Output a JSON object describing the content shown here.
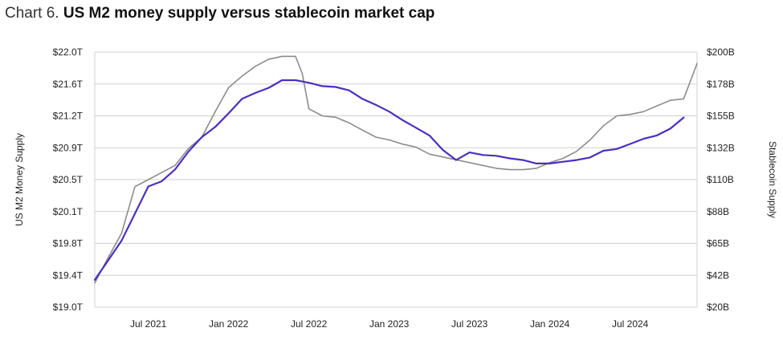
{
  "chart_data": {
    "type": "line",
    "title_prefix": "Chart 6.",
    "title": "US M2 money supply versus stablecoin market cap",
    "ylabel_left": "US M2 Money Supply",
    "ylabel_right": "Stablecoin Supply",
    "x_ticks": [
      "Jul 2021",
      "Jan 2022",
      "Jul 2022",
      "Jan 2023",
      "Jul 2023",
      "Jan 2024",
      "Jul 2024"
    ],
    "x_range_months": [
      0,
      45
    ],
    "y_left_ticks": [
      "$19.0T",
      "$19.4T",
      "$19.8T",
      "$20.1T",
      "$20.5T",
      "$20.9T",
      "$21.2T",
      "$21.6T",
      "$22.0T"
    ],
    "y_left_range": [
      19.0,
      22.0
    ],
    "y_right_ticks": [
      "$20B",
      "$42B",
      "$65B",
      "$88B",
      "$110B",
      "$132B",
      "$155B",
      "$178B",
      "$200B"
    ],
    "y_right_range": [
      20,
      200
    ],
    "grid": true,
    "series": [
      {
        "name": "US M2 Money Supply",
        "axis": "left",
        "color": "#4b2fc0",
        "x": [
          0,
          1,
          2,
          3,
          4,
          5,
          6,
          7,
          8,
          9,
          10,
          11,
          12,
          13,
          14,
          15,
          16,
          17,
          18,
          19,
          20,
          21,
          22,
          23,
          24,
          25,
          26,
          27,
          28,
          29,
          30,
          31,
          32,
          33,
          34,
          35,
          36,
          37,
          38,
          39,
          40,
          41,
          42,
          43,
          44
        ],
        "values": [
          19.32,
          19.55,
          19.78,
          20.1,
          20.42,
          20.48,
          20.62,
          20.83,
          21.0,
          21.12,
          21.28,
          21.45,
          21.52,
          21.58,
          21.67,
          21.67,
          21.64,
          21.6,
          21.59,
          21.55,
          21.45,
          21.38,
          21.3,
          21.2,
          21.11,
          21.02,
          20.85,
          20.73,
          20.82,
          20.79,
          20.78,
          20.75,
          20.73,
          20.69,
          20.69,
          20.71,
          20.73,
          20.76,
          20.84,
          20.86,
          20.92,
          20.98,
          21.02,
          21.1,
          21.23
        ]
      },
      {
        "name": "Stablecoin Supply",
        "axis": "right",
        "color": "#8c8c8c",
        "x": [
          0,
          1,
          2,
          3,
          4,
          5,
          6,
          7,
          8,
          9,
          10,
          11,
          12,
          13,
          14,
          15,
          15.5,
          16,
          17,
          18,
          19,
          20,
          21,
          22,
          23,
          24,
          25,
          26,
          27,
          28,
          29,
          30,
          31,
          32,
          33,
          34,
          35,
          36,
          37,
          38,
          39,
          40,
          41,
          42,
          43,
          44,
          45
        ],
        "values": [
          37,
          55,
          72,
          105,
          110,
          115,
          120,
          132,
          140,
          158,
          175,
          183,
          190,
          195,
          197,
          197,
          185,
          160,
          155,
          154,
          150,
          145,
          140,
          138,
          135,
          133,
          128,
          126,
          124,
          122,
          120,
          118,
          117,
          117,
          118,
          122,
          125,
          130,
          138,
          148,
          155,
          156,
          158,
          162,
          166,
          167,
          192
        ]
      }
    ]
  }
}
